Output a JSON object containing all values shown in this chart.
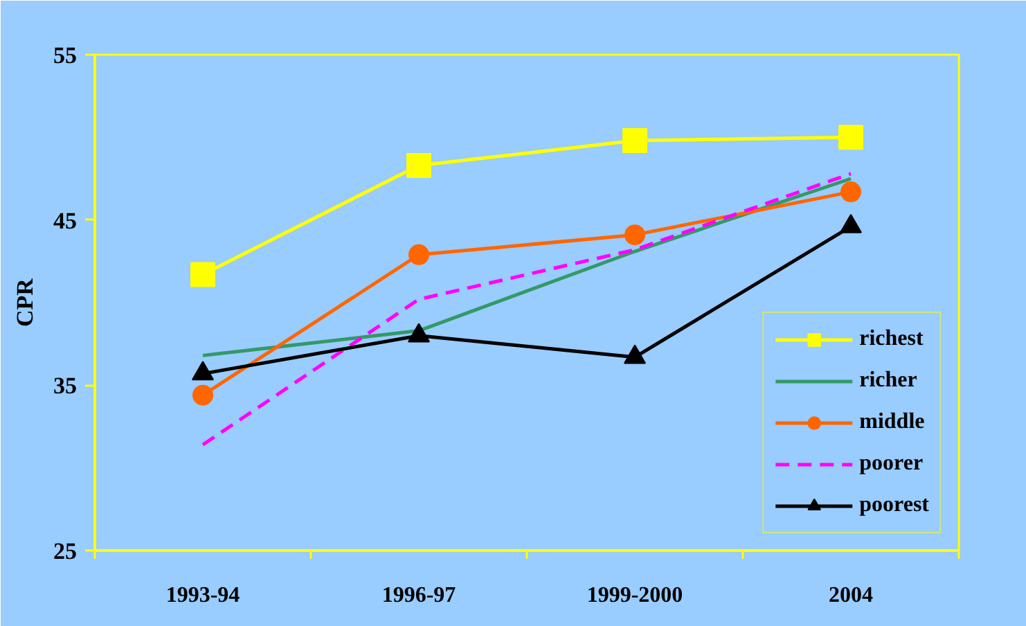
{
  "chart_data": {
    "type": "line",
    "ylabel": "CPR",
    "categories": [
      "1993-94",
      "1996-97",
      "1999-2000",
      "2004"
    ],
    "ylim": [
      25,
      55
    ],
    "yticks": [
      25,
      35,
      45,
      55
    ],
    "grid": false,
    "legend": "bottom right",
    "series": [
      {
        "name": "richest",
        "color": "#ffff00",
        "marker": "square",
        "line_style": "solid",
        "values": [
          41.7,
          48.3,
          49.8,
          50.0
        ]
      },
      {
        "name": "richer",
        "color": "#339966",
        "marker": "none",
        "line_style": "solid",
        "values": [
          36.8,
          38.3,
          43.1,
          47.5
        ]
      },
      {
        "name": "middle",
        "color": "#ff6600",
        "marker": "circle",
        "line_style": "solid",
        "values": [
          34.4,
          42.9,
          44.1,
          46.7
        ]
      },
      {
        "name": "poorer",
        "color": "#ff00ff",
        "marker": "none",
        "line_style": "dashed",
        "values": [
          31.4,
          40.2,
          43.2,
          47.8
        ]
      },
      {
        "name": "poorest",
        "color": "#000000",
        "marker": "triangle",
        "line_style": "solid",
        "values": [
          35.7,
          38.0,
          36.7,
          44.6
        ]
      }
    ]
  }
}
